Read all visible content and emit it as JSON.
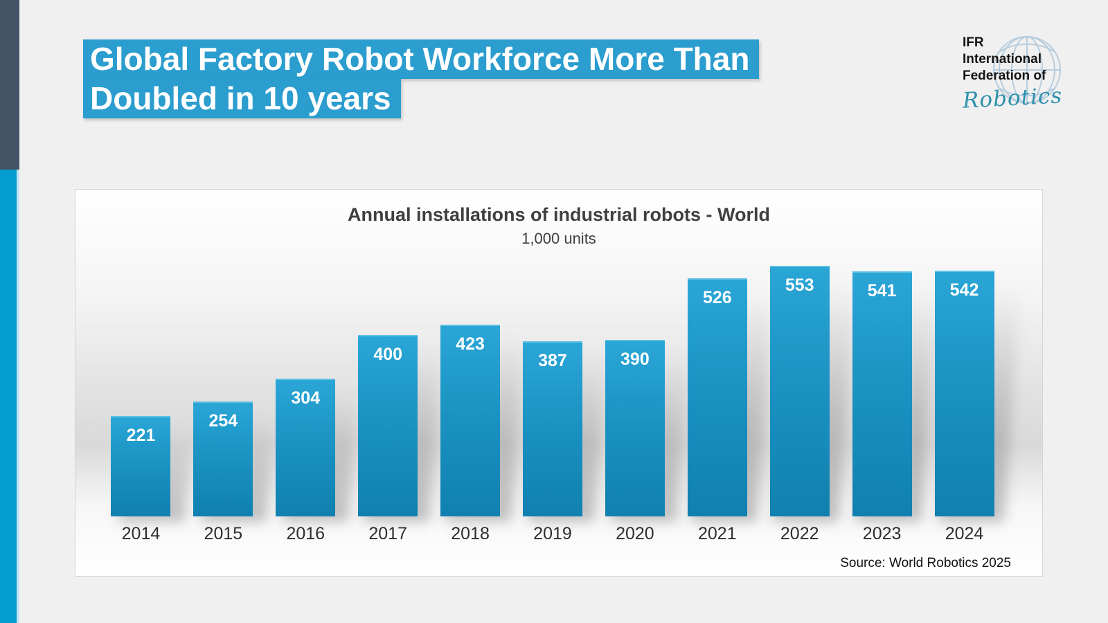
{
  "slide": {
    "title_line1": "Global Factory Robot Workforce More Than",
    "title_line2": "Doubled in 10 years"
  },
  "logo": {
    "line1": "IFR",
    "line2": "International",
    "line3": "Federation of",
    "script": "Robotics"
  },
  "chart_data": {
    "type": "bar",
    "title": "Annual installations of industrial robots - World",
    "subtitle": "1,000 units",
    "categories": [
      "2014",
      "2015",
      "2016",
      "2017",
      "2018",
      "2019",
      "2020",
      "2021",
      "2022",
      "2023",
      "2024"
    ],
    "values": [
      221,
      254,
      304,
      400,
      423,
      387,
      390,
      526,
      553,
      541,
      542
    ],
    "ylim": [
      0,
      570
    ],
    "grid": false,
    "legend": "none",
    "value_labels_position": "inside-top",
    "source": "Source: World Robotics 2025"
  },
  "colors": {
    "accent_dark": "#445366",
    "accent_cyan": "#059ccf",
    "title_highlight": "#2b9dce",
    "bar_top": "#2aa6d6",
    "bar_bottom": "#1080b0",
    "chart_text": "#3f3f3f",
    "logo_script_teal": "#2e91ac",
    "background": "#f0f0f1"
  }
}
